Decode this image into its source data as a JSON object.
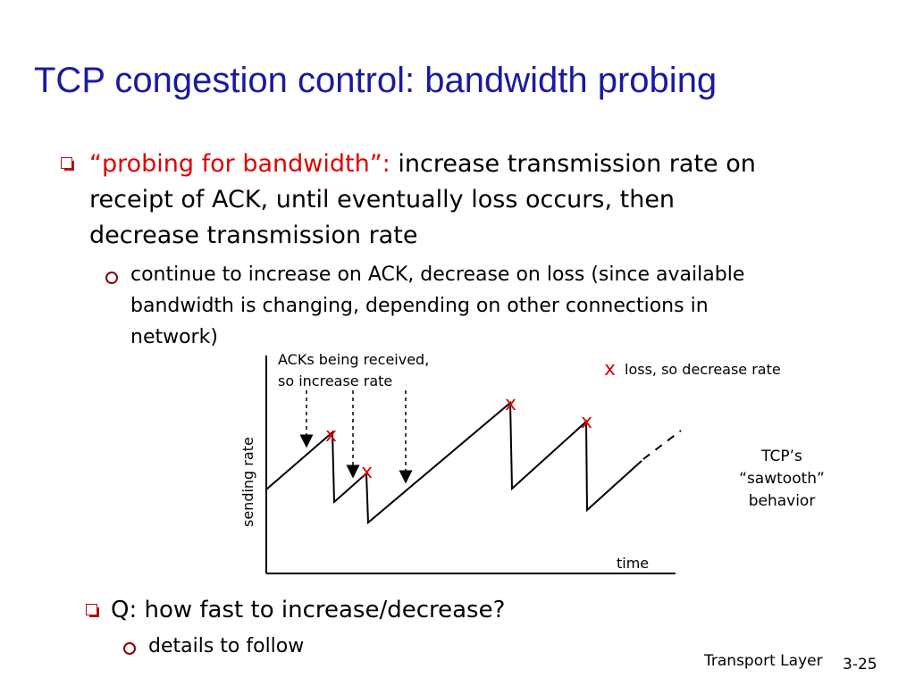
{
  "slide": {
    "title": "TCP congestion control: bandwidth probing",
    "bullet1": {
      "highlight": "“probing for bandwidth”:",
      "line1_rest": " increase transmission rate on",
      "line2": "receipt of ACK, until eventually loss occurs, then",
      "line3": "decrease transmission rate"
    },
    "sub1": {
      "line1": "continue to increase on ACK, decrease on loss (since available",
      "line2": "bandwidth is changing, depending on other connections in",
      "line3": "network)"
    },
    "bullet2": "Q: how fast to increase/decrease?",
    "sub2": "details to follow",
    "footer": {
      "left": "Transport Layer",
      "right": "3-25"
    }
  },
  "diagram": {
    "y_label": "sending rate",
    "x_label": "time",
    "ack_note_line1": "ACKs being received,",
    "ack_note_line2": "so increase rate",
    "loss_marker": "x",
    "loss_legend": "loss, so decrease rate",
    "behavior_line1": "TCP’s",
    "behavior_line2": "“sawtooth”",
    "behavior_line3": "behavior",
    "colors": {
      "loss": "#e00000",
      "line": "#000000"
    }
  }
}
